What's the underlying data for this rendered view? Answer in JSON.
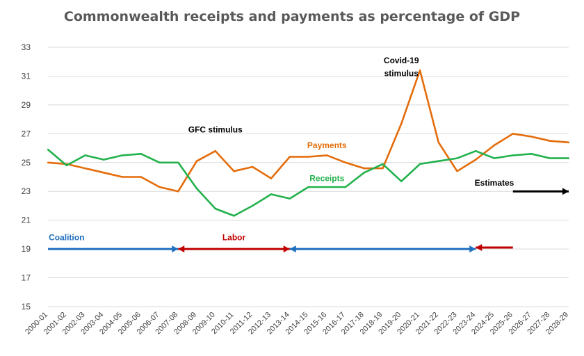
{
  "chart_data": {
    "type": "line",
    "title": "Commonwealth receipts and payments as percentage of GDP",
    "xlabel": "",
    "ylabel": "",
    "ylim": [
      15,
      33
    ],
    "yticks": [
      15,
      17,
      19,
      21,
      23,
      25,
      27,
      29,
      31,
      33
    ],
    "grid": true,
    "categories": [
      "2000-01",
      "2001-02",
      "2002-03",
      "2003-04",
      "2004-05",
      "2005-06",
      "2006-07",
      "2007-08",
      "2008-09",
      "2009-10",
      "2010-11",
      "2011-12",
      "2012-13",
      "2013-14",
      "2014-15",
      "2015-16",
      "2016-17",
      "2017-18",
      "2018-19",
      "2019-20",
      "2020-21",
      "2021-22",
      "2022-23",
      "2023-24",
      "2024-25",
      "2025-26",
      "2026-27",
      "2027-28",
      "2028-29"
    ],
    "series": [
      {
        "name": "Payments",
        "color": "#E46C0A",
        "values": [
          25.0,
          24.9,
          24.6,
          24.3,
          24.0,
          24.0,
          23.3,
          23.0,
          25.1,
          25.8,
          24.4,
          24.7,
          23.9,
          25.4,
          25.4,
          25.5,
          25.0,
          24.6,
          24.6,
          27.7,
          31.4,
          26.4,
          24.4,
          25.2,
          26.2,
          27.0,
          26.8,
          26.5,
          26.4
        ]
      },
      {
        "name": "Receipts",
        "color": "#22B14C",
        "values": [
          25.9,
          24.8,
          25.5,
          25.2,
          25.5,
          25.6,
          25.0,
          25.0,
          23.2,
          21.8,
          21.3,
          22.0,
          22.8,
          22.5,
          23.3,
          23.3,
          23.3,
          24.3,
          24.9,
          23.7,
          24.9,
          25.1,
          25.3,
          25.8,
          25.3,
          25.5,
          25.6,
          25.3,
          25.3
        ]
      }
    ],
    "annotations": [
      {
        "id": "gfc",
        "text": "GFC stimulus",
        "color": "#000000",
        "x": "2009-10",
        "y": 27.1
      },
      {
        "id": "covid1",
        "text": "Covid-19",
        "color": "#000000",
        "x": "2019-20",
        "y": 31.9
      },
      {
        "id": "covid2",
        "text": "stimulus",
        "color": "#000000",
        "x": "2019-20",
        "y": 31.0
      },
      {
        "id": "payments-label",
        "text": "Payments",
        "color": "#E46C0A",
        "x": "2015-16",
        "y": 26.0
      },
      {
        "id": "receipts-label",
        "text": "Receipts",
        "color": "#22B14C",
        "x": "2015-16",
        "y": 23.7
      },
      {
        "id": "estimates-label",
        "text": "Estimates",
        "color": "#000000",
        "x": "2024-25",
        "y": 23.4
      },
      {
        "id": "coalition-label",
        "text": "Coalition",
        "color": "#1F6FBF",
        "x": "2001-02",
        "y": 19.6
      },
      {
        "id": "labor-label",
        "text": "Labor",
        "color": "#C00000",
        "x": "2010-11",
        "y": 19.6
      }
    ],
    "arrows": [
      {
        "id": "coalition-arrow-1",
        "from": "2000-01",
        "to": "2007-08",
        "y": 19.0,
        "color": "#1F6FBF",
        "heads": "end"
      },
      {
        "id": "labor-arrow-1",
        "from": "2007-08",
        "to": "2013-14",
        "y": 19.0,
        "color": "#C00000",
        "heads": "both"
      },
      {
        "id": "coalition-arrow-2",
        "from": "2013-14",
        "to": "2023-24",
        "y": 19.0,
        "color": "#1F6FBF",
        "heads": "both"
      },
      {
        "id": "labor-arrow-2",
        "from": "2023-24",
        "to": "2025-26",
        "y": 19.1,
        "color": "#C00000",
        "heads": "start"
      },
      {
        "id": "estimates-arrow",
        "from": "2025-26",
        "to": "2028-29",
        "y": 23.0,
        "color": "#000000",
        "heads": "end"
      }
    ]
  }
}
